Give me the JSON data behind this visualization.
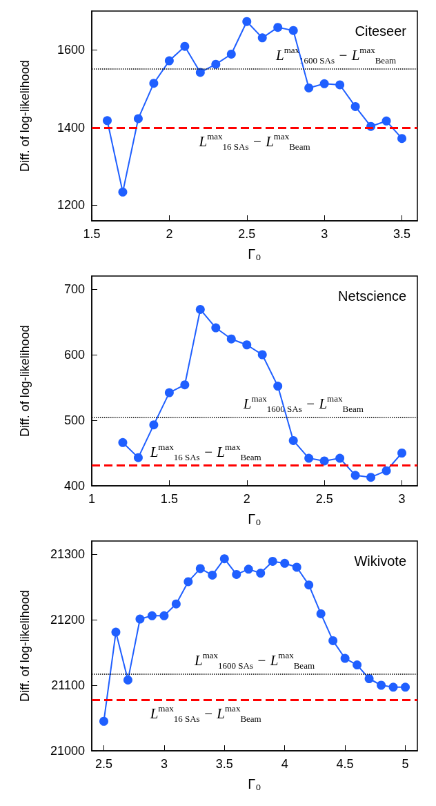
{
  "chart_data": [
    {
      "type": "line",
      "title": "Citeseer",
      "xlabel": "Γ₀",
      "ylabel": "Diff. of log-likelihood",
      "xlim": [
        1.5,
        3.6
      ],
      "ylim": [
        1160,
        1700
      ],
      "xticks": [
        1.5,
        2,
        2.5,
        3,
        3.5
      ],
      "yticks": [
        1200,
        1400,
        1600
      ],
      "marker": "circle",
      "line_style": "solid",
      "series": [
        {
          "color": "#1f5fff",
          "x": [
            1.6,
            1.7,
            1.8,
            1.9,
            2.0,
            2.1,
            2.2,
            2.3,
            2.4,
            2.5,
            2.6,
            2.7,
            2.8,
            2.9,
            3.0,
            3.1,
            3.2,
            3.3,
            3.4,
            3.5
          ],
          "values": [
            1418,
            1234,
            1423,
            1514,
            1572,
            1609,
            1542,
            1563,
            1589,
            1673,
            1631,
            1658,
            1650,
            1502,
            1513,
            1510,
            1454,
            1403,
            1417,
            1372
          ]
        }
      ],
      "ref_lines": [
        {
          "axis": "y",
          "value": 1551,
          "color": "#000000",
          "line_style": "dotted",
          "label": "L$^{max}$$_{1600 SAs}$ − L$^{max}$$_{Beam}$"
        },
        {
          "axis": "y",
          "value": 1400,
          "color": "#ff0000",
          "line_style": "dashed",
          "label": "L$^{max}$$_{16 SAs}$ − L$^{max}$$_{Beam}$"
        }
      ]
    },
    {
      "type": "line",
      "title": "Netscience",
      "xlabel": "Γ₀",
      "ylabel": "Diff. of log-likelihood",
      "xlim": [
        1,
        3.1
      ],
      "ylim": [
        400,
        720
      ],
      "xticks": [
        1,
        1.5,
        2,
        2.5,
        3
      ],
      "yticks": [
        400,
        500,
        600,
        700
      ],
      "marker": "circle",
      "line_style": "solid",
      "series": [
        {
          "color": "#1f5fff",
          "x": [
            1.2,
            1.3,
            1.4,
            1.5,
            1.6,
            1.7,
            1.8,
            1.9,
            2.0,
            2.1,
            2.2,
            2.3,
            2.4,
            2.5,
            2.6,
            2.7,
            2.8,
            2.9,
            3.0
          ],
          "values": [
            466,
            443,
            493,
            542,
            554,
            669,
            641,
            624,
            615,
            600,
            552,
            469,
            442,
            438,
            442,
            416,
            413,
            423,
            450
          ]
        }
      ],
      "ref_lines": [
        {
          "axis": "y",
          "value": 504,
          "color": "#000000",
          "line_style": "dotted",
          "label": "L$^{max}$$_{1600 SAs}$ − L$^{max}$$_{Beam}$"
        },
        {
          "axis": "y",
          "value": 431,
          "color": "#ff0000",
          "line_style": "dashed",
          "label": "L$^{max}$$_{16 SAs}$ − L$^{max}$$_{Beam}$"
        }
      ]
    },
    {
      "type": "line",
      "title": "Wikivote",
      "xlabel": "Γ₀",
      "ylabel": "Diff. of log-likelihood",
      "xlim": [
        2.4,
        5.1
      ],
      "ylim": [
        21000,
        21320
      ],
      "xticks": [
        2.5,
        3,
        3.5,
        4,
        4.5,
        5
      ],
      "yticks": [
        21000,
        21100,
        21200,
        21300
      ],
      "marker": "circle",
      "line_style": "solid",
      "series": [
        {
          "color": "#1f5fff",
          "x": [
            2.5,
            2.6,
            2.7,
            2.8,
            2.9,
            3.0,
            3.1,
            3.2,
            3.3,
            3.4,
            3.5,
            3.6,
            3.7,
            3.8,
            3.9,
            4.0,
            4.1,
            4.2,
            4.3,
            4.4,
            4.5,
            4.6,
            4.7,
            4.8,
            4.9,
            5.0
          ],
          "values": [
            21045,
            21181,
            21108,
            21201,
            21206,
            21206,
            21224,
            21258,
            21278,
            21268,
            21293,
            21269,
            21277,
            21271,
            21289,
            21286,
            21280,
            21253,
            21209,
            21168,
            21141,
            21131,
            21110,
            21100,
            21097,
            21097
          ]
        }
      ],
      "ref_lines": [
        {
          "axis": "y",
          "value": 21117,
          "color": "#000000",
          "line_style": "dotted",
          "label": "L$^{max}$$_{1600 SAs}$ − L$^{max}$$_{Beam}$"
        },
        {
          "axis": "y",
          "value": 21078,
          "color": "#ff0000",
          "line_style": "dashed",
          "label": "L$^{max}$$_{16 SAs}$ − L$^{max}$$_{Beam}$"
        }
      ]
    }
  ]
}
